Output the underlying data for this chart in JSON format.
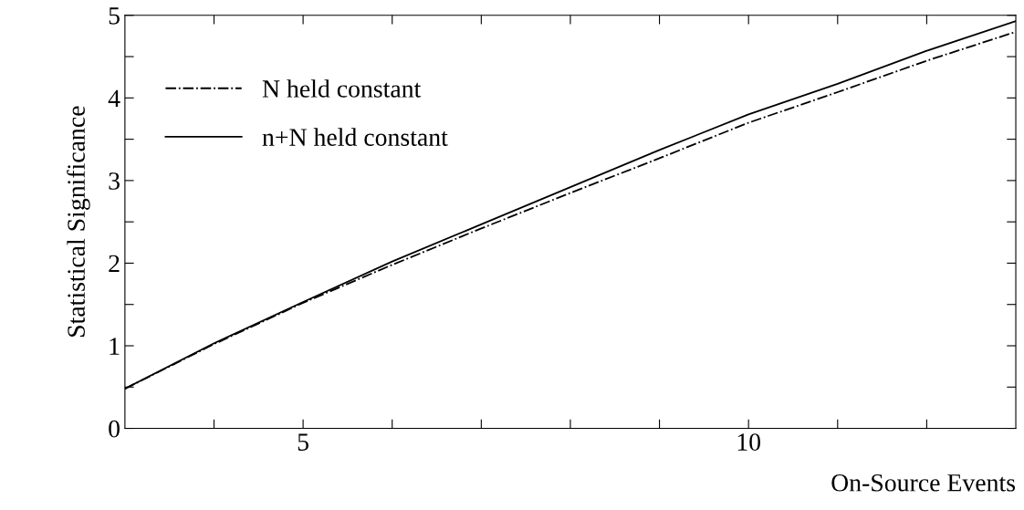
{
  "chart_data": {
    "type": "line",
    "xlabel": "On-Source Events",
    "ylabel": "Statistical Significance",
    "x": [
      3,
      4,
      5,
      6,
      7,
      8,
      9,
      10,
      11,
      12,
      13
    ],
    "series": [
      {
        "name": "N held constant",
        "color": "#000000",
        "line_style": "dashdot",
        "values": [
          0.48,
          1.02,
          1.52,
          1.98,
          2.42,
          2.85,
          3.27,
          3.7,
          4.07,
          4.45,
          4.8
        ]
      },
      {
        "name": "n+N held constant",
        "color": "#000000",
        "line_style": "solid",
        "values": [
          0.48,
          1.03,
          1.53,
          2.02,
          2.47,
          2.92,
          3.37,
          3.8,
          4.17,
          4.57,
          4.93
        ]
      }
    ],
    "xlim": [
      3,
      13
    ],
    "xticks": [
      {
        "value": 4,
        "label": null
      },
      5,
      {
        "value": 6,
        "label": null
      },
      {
        "value": 7,
        "label": null
      },
      {
        "value": 8,
        "label": null
      },
      {
        "value": 9,
        "label": null
      },
      10,
      {
        "value": 11,
        "label": null
      },
      {
        "value": 12,
        "label": null
      }
    ],
    "ylim": [
      0,
      5
    ],
    "yticks": [
      0,
      {
        "value": 0.5,
        "label": null
      },
      1,
      {
        "value": 1.5,
        "label": null
      },
      2,
      {
        "value": 2.5,
        "label": null
      },
      3,
      {
        "value": 3.5,
        "label": null
      },
      4,
      {
        "value": 4.5,
        "label": null
      },
      5
    ],
    "grid": false,
    "legend": "top left"
  }
}
